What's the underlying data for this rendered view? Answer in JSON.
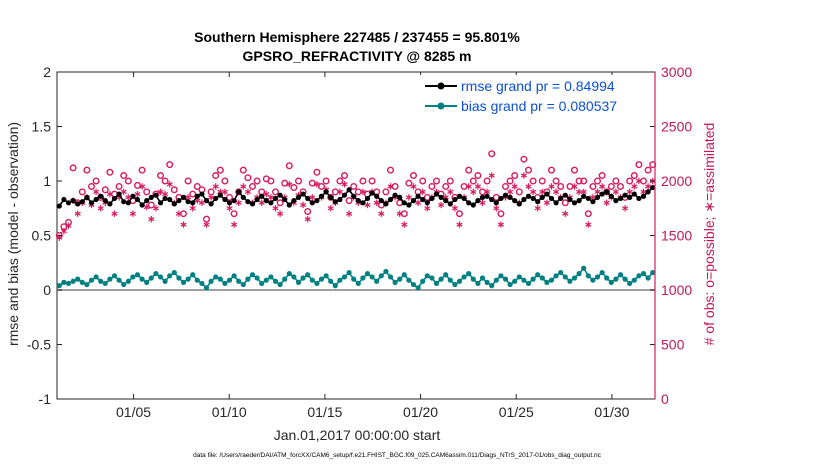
{
  "chart_data": {
    "type": "line",
    "title_line1": "Southern Hemisphere 227485 / 237455 = 95.801%",
    "title_line2": "GPSRO_REFRACTIVITY @ 8285 m",
    "xlabel": "Jan.01,2017 00:00:00 start",
    "ylabel_left": "rmse and bias (model - observation)",
    "ylabel_right": "# of obs: o=possible; ∗=assimilated",
    "footer": "data file: /Users/raeder/DAI/ATM_forcXX/CAM6_setup/f.e21.FHIST_BGC.f09_025.CAM6assim.011/Diags_NTrS_2017-01/obs_diag_output.nc",
    "x_tick_labels": [
      "01/05",
      "01/10",
      "01/15",
      "01/20",
      "01/25",
      "01/30"
    ],
    "x_tick_days": [
      5,
      10,
      15,
      20,
      25,
      30
    ],
    "xlim_days": [
      1,
      32.25
    ],
    "ylim_left": [
      -1,
      2
    ],
    "left_ticks": [
      "-1",
      "-0.5",
      "0",
      "0.5",
      "1",
      "1.5",
      "2"
    ],
    "ylim_right": [
      0,
      3000
    ],
    "right_ticks": [
      "0",
      "500",
      "1000",
      "1500",
      "2000",
      "2500",
      "3000"
    ],
    "legend": {
      "rmse_label": "rmse grand pr = 0.84994",
      "bias_label": "bias grand pr = 0.080537"
    },
    "colors": {
      "rmse": "#000000",
      "bias": "#008080",
      "counts": "#d81b60",
      "legend_text": "#0a4fd6",
      "zero_line": "#a0a0a0"
    },
    "series": [
      {
        "name": "rmse",
        "values": [
          0.77,
          0.83,
          0.8,
          0.82,
          0.79,
          0.81,
          0.85,
          0.8,
          0.83,
          0.86,
          0.82,
          0.79,
          0.84,
          0.88,
          0.81,
          0.8,
          0.86,
          0.83,
          0.78,
          0.82,
          0.85,
          0.87,
          0.8,
          0.84,
          0.83,
          0.79,
          0.82,
          0.85,
          0.81,
          0.8,
          0.86,
          0.88,
          0.82,
          0.79,
          0.84,
          0.87,
          0.83,
          0.8,
          0.82,
          0.9,
          0.85,
          0.81,
          0.79,
          0.83,
          0.86,
          0.82,
          0.8,
          0.84,
          0.87,
          0.83,
          0.78,
          0.82,
          0.85,
          0.88,
          0.84,
          0.8,
          0.82,
          0.86,
          0.9,
          0.85,
          0.81,
          0.83,
          0.87,
          0.92,
          0.86,
          0.82,
          0.8,
          0.84,
          0.89,
          0.86,
          0.82,
          0.79,
          0.83,
          0.87,
          0.85,
          0.8,
          0.78,
          0.82,
          0.86,
          0.83,
          0.8,
          0.84,
          0.88,
          0.85,
          0.82,
          0.79,
          0.83,
          0.86,
          0.84,
          0.8,
          0.78,
          0.82,
          0.85,
          0.86,
          0.83,
          0.8,
          0.84,
          0.87,
          0.85,
          0.82,
          0.79,
          0.83,
          0.86,
          0.84,
          0.81,
          0.85,
          0.88,
          0.84,
          0.8,
          0.84,
          0.87,
          0.83,
          0.8,
          0.82,
          0.86,
          0.84,
          0.81,
          0.85,
          0.88,
          0.9,
          0.86,
          0.82,
          0.84,
          0.87,
          0.85,
          0.88,
          0.84,
          0.86,
          0.9,
          0.94
        ]
      },
      {
        "name": "bias",
        "values": [
          0.04,
          0.07,
          0.06,
          0.08,
          0.1,
          0.07,
          0.05,
          0.09,
          0.12,
          0.08,
          0.06,
          0.1,
          0.13,
          0.09,
          0.05,
          0.08,
          0.12,
          0.14,
          0.1,
          0.07,
          0.11,
          0.15,
          0.12,
          0.08,
          0.13,
          0.16,
          0.11,
          0.07,
          0.1,
          0.14,
          0.09,
          0.06,
          0.02,
          0.08,
          0.12,
          0.1,
          0.06,
          0.09,
          0.13,
          0.08,
          0.05,
          0.1,
          0.14,
          0.11,
          0.06,
          0.09,
          0.12,
          0.08,
          0.05,
          0.1,
          0.15,
          0.12,
          0.07,
          0.11,
          0.14,
          0.09,
          0.06,
          0.1,
          0.13,
          0.08,
          0.04,
          0.09,
          0.12,
          0.16,
          0.1,
          0.06,
          0.11,
          0.15,
          0.12,
          0.08,
          0.13,
          0.17,
          0.12,
          0.07,
          0.1,
          0.14,
          0.09,
          0.05,
          0.02,
          0.08,
          0.13,
          0.11,
          0.06,
          0.1,
          0.14,
          0.09,
          0.05,
          0.08,
          0.12,
          0.15,
          0.1,
          0.06,
          0.11,
          0.07,
          0.04,
          0.09,
          0.13,
          0.1,
          0.05,
          0.08,
          0.12,
          0.09,
          0.06,
          0.1,
          0.14,
          0.11,
          0.07,
          0.09,
          0.13,
          0.16,
          0.12,
          0.08,
          0.11,
          0.15,
          0.2,
          0.13,
          0.09,
          0.12,
          0.16,
          0.11,
          0.07,
          0.1,
          0.14,
          0.1,
          0.06,
          0.09,
          0.13,
          0.15,
          0.11,
          0.16
        ]
      },
      {
        "name": "possible",
        "values": [
          1500,
          1580,
          1620,
          2120,
          1800,
          1900,
          2100,
          1950,
          2000,
          1850,
          1920,
          2080,
          1880,
          1950,
          2050,
          2000,
          1820,
          1960,
          2100,
          1900,
          1780,
          1880,
          2050,
          2000,
          2150,
          1920,
          1850,
          1700,
          2000,
          1880,
          1950,
          1920,
          1650,
          1900,
          2050,
          2100,
          2000,
          1850,
          1700,
          1900,
          2100,
          2030,
          1950,
          2000,
          1900,
          2020,
          2000,
          1900,
          1800,
          1980,
          2140,
          1940,
          2000,
          1900,
          1720,
          1980,
          2080,
          1950,
          2000,
          1850,
          1900,
          2000,
          2050,
          1820,
          1950,
          1900,
          2000,
          1880,
          2000,
          1900,
          1780,
          1900,
          2100,
          1950,
          1800,
          1700,
          1980,
          2050,
          1900,
          2000,
          1850,
          1950,
          2000,
          1880,
          1950,
          2000,
          1850,
          1700,
          1950,
          2100,
          2000,
          2050,
          1900,
          2000,
          2250,
          1850,
          1700,
          1950,
          2000,
          2050,
          1900,
          2200,
          2100,
          2000,
          1850,
          2000,
          1900,
          2100,
          2000,
          1950,
          1800,
          1950,
          2100,
          2000,
          2000,
          1700,
          1950,
          2000,
          2050,
          1900,
          1950,
          2000,
          1950,
          1850,
          2000,
          2050,
          2150,
          2000,
          2100,
          2150
        ]
      },
      {
        "name": "assimilated",
        "values": [
          1480,
          1540,
          1590,
          1820,
          1700,
          1800,
          1850,
          1780,
          1900,
          1750,
          1800,
          1880,
          1700,
          1850,
          1900,
          1850,
          1700,
          1880,
          1950,
          1760,
          1650,
          1750,
          1900,
          1880,
          1970,
          1800,
          1700,
          1600,
          1850,
          1750,
          1820,
          1800,
          1600,
          1850,
          1950,
          1900,
          1900,
          1750,
          1600,
          1800,
          1950,
          1900,
          1800,
          1850,
          1800,
          1880,
          1850,
          1750,
          1700,
          1850,
          1970,
          1800,
          1870,
          1780,
          1650,
          1850,
          1970,
          1850,
          1920,
          1750,
          1800,
          1900,
          1970,
          1700,
          1850,
          1800,
          1900,
          1780,
          1900,
          1800,
          1700,
          1800,
          1950,
          1850,
          1700,
          1600,
          1850,
          1950,
          1800,
          1900,
          1750,
          1850,
          1900,
          1780,
          1850,
          1900,
          1750,
          1600,
          1850,
          1950,
          1900,
          1950,
          1800,
          1900,
          2050,
          1750,
          1600,
          1850,
          1900,
          1950,
          1800,
          2050,
          1950,
          1900,
          1750,
          1900,
          1800,
          1950,
          1900,
          1850,
          1700,
          1850,
          1950,
          1900,
          1900,
          1600,
          1850,
          1900,
          1950,
          1800,
          1850,
          1900,
          1850,
          1750,
          1900,
          1950,
          2000,
          1900,
          1950,
          2000
        ]
      }
    ]
  }
}
